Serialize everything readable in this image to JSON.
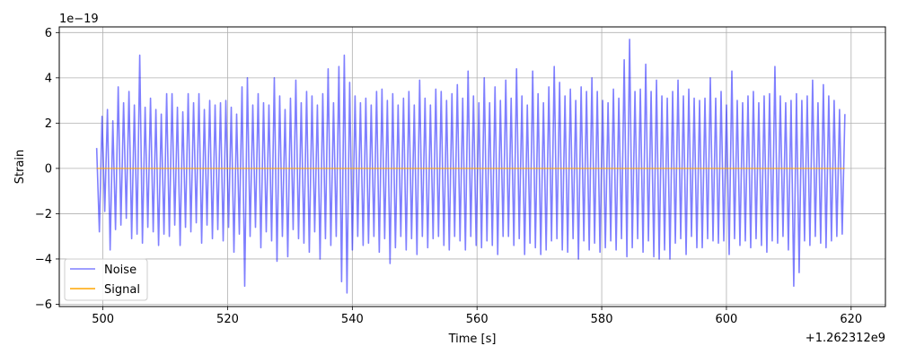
{
  "chart_data": {
    "type": "line",
    "xlabel": "Time [s]",
    "ylabel": "Strain",
    "x_offset_text": "+1.262312e9",
    "y_offset_text": "1e−19",
    "xlim": [
      1262312493.0,
      1262312625.5
    ],
    "ylim": [
      -6.1,
      6.25
    ],
    "x_ticks": [
      500,
      520,
      540,
      560,
      580,
      600,
      620
    ],
    "y_ticks": [
      -6,
      -4,
      -2,
      0,
      2,
      4,
      6
    ],
    "x_tick_labels": [
      "500",
      "520",
      "540",
      "560",
      "580",
      "600",
      "620"
    ],
    "y_tick_labels": [
      "−6",
      "−4",
      "−2",
      "0",
      "2",
      "4",
      "6"
    ],
    "grid": true,
    "legend_position": "lower-left",
    "series": [
      {
        "name": "Noise",
        "color": "#0000ff",
        "opacity": 0.5,
        "time_range": [
          1262312499.0,
          1262312619.0
        ],
        "values": [
          0.9,
          -2.8,
          2.3,
          -1.9,
          2.6,
          -3.6,
          2.1,
          -2.7,
          3.6,
          -2.5,
          2.9,
          -2.2,
          3.4,
          -3.1,
          2.8,
          -2.9,
          5.0,
          -3.3,
          2.7,
          -2.6,
          3.1,
          -2.8,
          2.6,
          -3.4,
          2.4,
          -2.9,
          3.3,
          -3.0,
          3.3,
          -2.5,
          2.7,
          -3.4,
          2.5,
          -2.6,
          3.3,
          -2.8,
          2.9,
          -2.4,
          3.3,
          -3.3,
          2.6,
          -2.5,
          3.0,
          -3.1,
          2.8,
          -2.7,
          2.9,
          -3.2,
          3.0,
          -2.6,
          2.7,
          -3.7,
          2.4,
          -2.9,
          3.6,
          -5.2,
          4.0,
          -3.0,
          2.8,
          -2.6,
          3.3,
          -3.5,
          2.9,
          -2.8,
          2.8,
          -3.2,
          4.0,
          -4.1,
          3.2,
          -3.0,
          2.6,
          -3.9,
          3.1,
          -2.7,
          3.9,
          -3.1,
          2.9,
          -3.3,
          3.4,
          -3.7,
          3.2,
          -2.8,
          2.8,
          -4.0,
          3.3,
          -3.1,
          4.4,
          -3.4,
          2.9,
          -3.0,
          4.5,
          -5.0,
          5.0,
          -5.5,
          3.8,
          -3.6,
          3.2,
          -3.0,
          2.9,
          -3.4,
          3.1,
          -3.3,
          2.8,
          -3.0,
          3.4,
          -3.7,
          3.5,
          -3.1,
          3.0,
          -4.2,
          3.3,
          -3.5,
          2.8,
          -3.0,
          3.1,
          -3.6,
          3.4,
          -3.1,
          2.8,
          -3.8,
          3.9,
          -3.0,
          3.1,
          -3.5,
          2.8,
          -3.1,
          3.5,
          -3.0,
          3.4,
          -3.4,
          3.0,
          -3.6,
          3.3,
          -3.0,
          3.7,
          -3.2,
          3.1,
          -3.6,
          4.3,
          -3.0,
          3.2,
          -3.4,
          2.9,
          -3.5,
          4.0,
          -3.2,
          2.9,
          -3.4,
          3.6,
          -3.8,
          3.0,
          -3.0,
          3.9,
          -3.0,
          3.1,
          -3.4,
          4.4,
          -3.1,
          3.2,
          -3.8,
          2.8,
          -3.3,
          4.3,
          -3.5,
          3.3,
          -3.8,
          2.9,
          -3.6,
          3.6,
          -3.2,
          4.5,
          -3.1,
          3.8,
          -3.6,
          3.2,
          -3.7,
          3.5,
          -3.1,
          3.0,
          -4.0,
          3.6,
          -3.2,
          3.4,
          -3.6,
          4.0,
          -3.3,
          3.4,
          -3.7,
          3.0,
          -3.5,
          2.9,
          -3.2,
          3.5,
          -3.6,
          3.1,
          -3.1,
          4.8,
          -3.9,
          5.7,
          -3.5,
          3.4,
          -3.1,
          3.5,
          -3.7,
          4.6,
          -3.2,
          3.4,
          -3.9,
          3.9,
          -4.0,
          3.2,
          -3.6,
          3.1,
          -4.0,
          3.4,
          -3.3,
          3.9,
          -3.1,
          3.2,
          -3.8,
          3.5,
          -3.0,
          3.1,
          -3.5,
          3.0,
          -3.5,
          3.1,
          -3.1,
          4.0,
          -3.2,
          3.1,
          -3.3,
          3.4,
          -3.2,
          2.8,
          -3.8,
          4.3,
          -3.1,
          3.0,
          -3.4,
          2.9,
          -3.2,
          3.2,
          -3.5,
          3.4,
          -3.1,
          2.9,
          -3.4,
          3.2,
          -3.7,
          3.3,
          -3.2,
          4.5,
          -3.3,
          3.2,
          -3.0,
          2.9,
          -3.6,
          3.0,
          -5.2,
          3.3,
          -4.6,
          3.0,
          -3.2,
          3.2,
          -3.4,
          3.9,
          -3.0,
          2.9,
          -3.3,
          3.7,
          -3.5,
          3.2,
          -3.2,
          3.0,
          -3.0,
          2.6,
          -2.9,
          2.4
        ]
      },
      {
        "name": "Signal",
        "color": "#ffa500",
        "time_range": [
          1262312499.0,
          1262312619.0
        ],
        "values": [
          0,
          0
        ]
      }
    ]
  }
}
